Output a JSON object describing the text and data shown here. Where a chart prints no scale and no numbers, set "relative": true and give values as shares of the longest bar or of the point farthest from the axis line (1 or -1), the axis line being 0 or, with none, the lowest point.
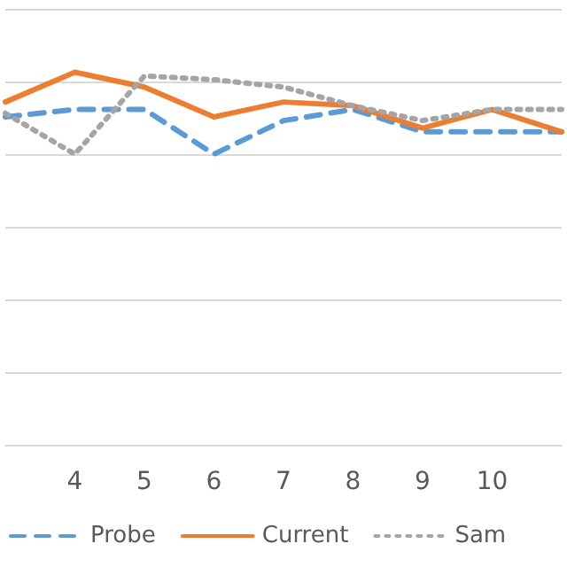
{
  "chart_data": {
    "type": "line",
    "relative": true,
    "categories": [
      null,
      "4",
      "5",
      "6",
      "7",
      "8",
      "9",
      "10",
      null
    ],
    "series": [
      {
        "name": "Probe",
        "color": "#5b9bd5",
        "line_style": "dashed",
        "values": [
          0.88,
          0.9,
          0.9,
          0.78,
          0.87,
          0.9,
          0.84,
          0.84,
          0.84
        ]
      },
      {
        "name": "Current",
        "color": "#ed7d31",
        "line_style": "solid",
        "values": [
          0.92,
          1,
          0.96,
          0.88,
          0.92,
          0.91,
          0.85,
          0.9,
          0.84
        ]
      },
      {
        "name": "Sam",
        "color": "#a5a5a5",
        "line_style": "dotted",
        "values": [
          0.89,
          0.78,
          0.99,
          0.98,
          0.96,
          0.91,
          0.87,
          0.9,
          0.9
        ]
      }
    ],
    "grid": "y",
    "legend": "bottom",
    "marker": "none"
  }
}
